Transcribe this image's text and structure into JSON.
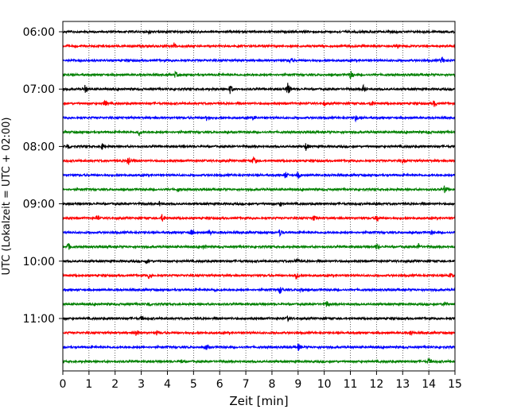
{
  "chart_data": {
    "type": "line",
    "title": "",
    "xlabel": "Zeit  [min]",
    "ylabel": "UTC (Lokalzeit = UTC + 02:00)",
    "xlim": [
      0,
      15
    ],
    "x_ticks": [
      0,
      1,
      2,
      3,
      4,
      5,
      6,
      7,
      8,
      9,
      10,
      11,
      12,
      13,
      14,
      15
    ],
    "x_tick_labels": [
      "0",
      "1",
      "2",
      "3",
      "4",
      "5",
      "6",
      "7",
      "8",
      "9",
      "10",
      "11",
      "12",
      "13",
      "14",
      "15"
    ],
    "vertical_grid": "dotted",
    "y_tick_labels": [
      "06:00",
      "07:00",
      "08:00",
      "09:00",
      "10:00",
      "11:00"
    ],
    "rows_per_hour": 4,
    "row_minutes": 15,
    "row_colors": [
      "#000000",
      "#ff0000",
      "#0000ff",
      "#008000"
    ],
    "traces": [
      {
        "start": "06:00",
        "color": "#000000",
        "events": [
          {
            "t": 3.3,
            "amp": 0.22
          }
        ]
      },
      {
        "start": "06:15",
        "color": "#ff0000",
        "events": [
          {
            "t": 4.25,
            "amp": 0.32
          },
          {
            "t": 12.8,
            "amp": 0.22
          }
        ]
      },
      {
        "start": "06:30",
        "color": "#0000ff",
        "events": [
          {
            "t": 8.7,
            "amp": 0.25
          },
          {
            "t": 14.5,
            "amp": 0.35
          }
        ]
      },
      {
        "start": "06:45",
        "color": "#008000",
        "events": [
          {
            "t": 4.3,
            "amp": 0.28
          },
          {
            "t": 11.0,
            "amp": 0.38
          }
        ]
      },
      {
        "start": "07:00",
        "color": "#000000",
        "events": [
          {
            "t": 0.85,
            "amp": 0.35
          },
          {
            "t": 6.4,
            "amp": 0.4
          },
          {
            "t": 8.6,
            "amp": 0.55
          },
          {
            "t": 11.5,
            "amp": 0.35
          }
        ]
      },
      {
        "start": "07:15",
        "color": "#ff0000",
        "events": [
          {
            "t": 1.6,
            "amp": 0.32
          },
          {
            "t": 10.0,
            "amp": 0.25
          },
          {
            "t": 11.8,
            "amp": 0.3
          },
          {
            "t": 14.2,
            "amp": 0.3
          }
        ]
      },
      {
        "start": "07:30",
        "color": "#0000ff",
        "events": [
          {
            "t": 5.5,
            "amp": 0.32
          },
          {
            "t": 7.3,
            "amp": 0.2
          },
          {
            "t": 11.2,
            "amp": 0.3
          }
        ]
      },
      {
        "start": "07:45",
        "color": "#008000",
        "events": [
          {
            "t": 2.9,
            "amp": 0.32
          },
          {
            "t": 14.0,
            "amp": 0.22
          }
        ]
      },
      {
        "start": "08:00",
        "color": "#000000",
        "events": [
          {
            "t": 0.2,
            "amp": 0.3
          },
          {
            "t": 1.5,
            "amp": 0.3
          },
          {
            "t": 9.3,
            "amp": 0.35
          }
        ]
      },
      {
        "start": "08:15",
        "color": "#ff0000",
        "events": [
          {
            "t": 2.5,
            "amp": 0.45
          },
          {
            "t": 7.3,
            "amp": 0.35
          },
          {
            "t": 13.0,
            "amp": 0.22
          }
        ]
      },
      {
        "start": "08:30",
        "color": "#0000ff",
        "events": [
          {
            "t": 8.5,
            "amp": 0.32
          },
          {
            "t": 9.0,
            "amp": 0.3
          }
        ]
      },
      {
        "start": "08:45",
        "color": "#008000",
        "events": [
          {
            "t": 4.4,
            "amp": 0.25
          },
          {
            "t": 14.6,
            "amp": 0.35
          }
        ]
      },
      {
        "start": "09:00",
        "color": "#000000",
        "events": [
          {
            "t": 3.7,
            "amp": 0.22
          },
          {
            "t": 8.3,
            "amp": 0.3
          },
          {
            "t": 12.0,
            "amp": 0.22
          }
        ]
      },
      {
        "start": "09:15",
        "color": "#ff0000",
        "events": [
          {
            "t": 1.3,
            "amp": 0.3
          },
          {
            "t": 3.8,
            "amp": 0.35
          },
          {
            "t": 9.6,
            "amp": 0.3
          },
          {
            "t": 12.0,
            "amp": 0.35
          },
          {
            "t": 15.0,
            "amp": 0.3
          }
        ]
      },
      {
        "start": "09:30",
        "color": "#0000ff",
        "events": [
          {
            "t": 4.9,
            "amp": 0.3
          },
          {
            "t": 5.6,
            "amp": 0.28
          },
          {
            "t": 8.3,
            "amp": 0.35
          },
          {
            "t": 14.1,
            "amp": 0.22
          }
        ]
      },
      {
        "start": "09:45",
        "color": "#008000",
        "events": [
          {
            "t": 0.2,
            "amp": 0.35
          },
          {
            "t": 5.4,
            "amp": 0.25
          },
          {
            "t": 12.0,
            "amp": 0.28
          },
          {
            "t": 13.6,
            "amp": 0.32
          }
        ]
      },
      {
        "start": "10:00",
        "color": "#000000",
        "events": [
          {
            "t": 3.2,
            "amp": 0.25
          },
          {
            "t": 8.9,
            "amp": 0.3
          }
        ]
      },
      {
        "start": "10:15",
        "color": "#ff0000",
        "events": [
          {
            "t": 3.3,
            "amp": 0.32
          },
          {
            "t": 8.9,
            "amp": 0.38
          },
          {
            "t": 14.8,
            "amp": 0.3
          }
        ]
      },
      {
        "start": "10:30",
        "color": "#0000ff",
        "events": [
          {
            "t": 5.8,
            "amp": 0.22
          },
          {
            "t": 8.3,
            "amp": 0.35
          },
          {
            "t": 9.1,
            "amp": 0.28
          }
        ]
      },
      {
        "start": "10:45",
        "color": "#008000",
        "events": [
          {
            "t": 3.3,
            "amp": 0.25
          },
          {
            "t": 10.1,
            "amp": 0.32
          },
          {
            "t": 14.6,
            "amp": 0.3
          }
        ]
      },
      {
        "start": "11:00",
        "color": "#000000",
        "events": [
          {
            "t": 3.0,
            "amp": 0.25
          },
          {
            "t": 8.6,
            "amp": 0.25
          }
        ]
      },
      {
        "start": "11:15",
        "color": "#ff0000",
        "events": [
          {
            "t": 2.8,
            "amp": 0.35
          },
          {
            "t": 3.6,
            "amp": 0.25
          },
          {
            "t": 13.3,
            "amp": 0.3
          }
        ]
      },
      {
        "start": "11:30",
        "color": "#0000ff",
        "events": [
          {
            "t": 5.5,
            "amp": 0.25
          },
          {
            "t": 9.0,
            "amp": 0.35
          }
        ]
      },
      {
        "start": "11:45",
        "color": "#008000",
        "events": [
          {
            "t": 4.5,
            "amp": 0.25
          },
          {
            "t": 14.0,
            "amp": 0.3
          }
        ]
      }
    ]
  }
}
